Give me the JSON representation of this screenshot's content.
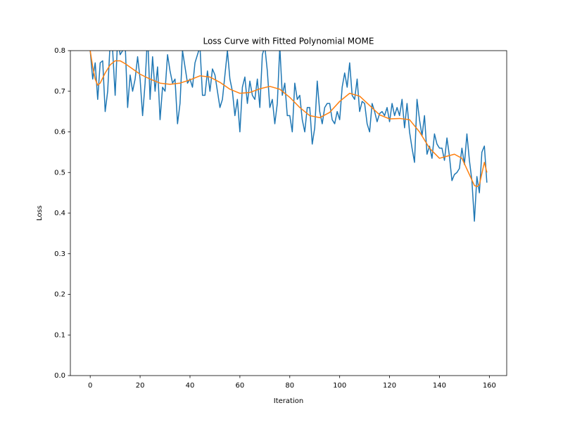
{
  "chart_data": {
    "type": "line",
    "title": "Loss Curve with Fitted Polynomial MOME",
    "xlabel": "Iteration",
    "ylabel": "Loss",
    "xlim": [
      -7.95,
      166.95
    ],
    "ylim": [
      0,
      0.8
    ],
    "xticks": [
      0,
      20,
      40,
      60,
      80,
      100,
      120,
      140,
      160
    ],
    "yticks": [
      {
        "value": 0,
        "label": "0.0"
      },
      0.1,
      0.2,
      0.3,
      0.4,
      0.5,
      0.6,
      0.7,
      0.8
    ],
    "series": [
      {
        "color": "#1f77b4",
        "x": [
          0,
          1,
          2,
          3,
          4,
          5,
          6,
          7,
          8,
          9,
          10,
          11,
          12,
          13,
          14,
          15,
          16,
          17,
          18,
          19,
          20,
          21,
          22,
          23,
          24,
          25,
          26,
          27,
          28,
          29,
          30,
          31,
          32,
          33,
          34,
          35,
          36,
          37,
          38,
          39,
          40,
          41,
          42,
          43,
          44,
          45,
          46,
          47,
          48,
          49,
          50,
          51,
          52,
          53,
          54,
          55,
          56,
          57,
          58,
          59,
          60,
          61,
          62,
          63,
          64,
          65,
          66,
          67,
          68,
          69,
          70,
          71,
          72,
          73,
          74,
          75,
          76,
          77,
          78,
          79,
          80,
          81,
          82,
          83,
          84,
          85,
          86,
          87,
          88,
          89,
          90,
          91,
          92,
          93,
          94,
          95,
          96,
          97,
          98,
          99,
          100,
          101,
          102,
          103,
          104,
          105,
          106,
          107,
          108,
          109,
          110,
          111,
          112,
          113,
          114,
          115,
          116,
          117,
          118,
          119,
          120,
          121,
          122,
          123,
          124,
          125,
          126,
          127,
          128,
          129,
          130,
          131,
          132,
          133,
          134,
          135,
          136,
          137,
          138,
          139,
          140,
          141,
          142,
          143,
          144,
          145,
          146,
          147,
          148,
          149,
          150,
          151,
          152,
          153,
          154,
          155,
          156,
          157,
          158,
          159
        ],
        "values": [
          0.8,
          0.73,
          0.77,
          0.68,
          0.77,
          0.775,
          0.65,
          0.7,
          0.82,
          0.8,
          0.69,
          0.83,
          0.79,
          0.8,
          0.82,
          0.66,
          0.74,
          0.7,
          0.73,
          0.785,
          0.73,
          0.64,
          0.72,
          0.84,
          0.68,
          0.785,
          0.7,
          0.76,
          0.63,
          0.71,
          0.7,
          0.79,
          0.75,
          0.72,
          0.73,
          0.62,
          0.67,
          0.8,
          0.76,
          0.72,
          0.73,
          0.71,
          0.77,
          0.79,
          0.81,
          0.69,
          0.69,
          0.75,
          0.7,
          0.755,
          0.74,
          0.7,
          0.66,
          0.68,
          0.74,
          0.8,
          0.73,
          0.7,
          0.64,
          0.68,
          0.6,
          0.71,
          0.735,
          0.67,
          0.725,
          0.69,
          0.68,
          0.73,
          0.66,
          0.79,
          0.81,
          0.75,
          0.66,
          0.68,
          0.62,
          0.67,
          0.81,
          0.69,
          0.72,
          0.64,
          0.64,
          0.6,
          0.72,
          0.68,
          0.69,
          0.63,
          0.6,
          0.66,
          0.66,
          0.57,
          0.61,
          0.725,
          0.65,
          0.62,
          0.66,
          0.67,
          0.67,
          0.63,
          0.62,
          0.65,
          0.63,
          0.71,
          0.745,
          0.71,
          0.77,
          0.69,
          0.68,
          0.73,
          0.65,
          0.675,
          0.67,
          0.62,
          0.6,
          0.67,
          0.65,
          0.625,
          0.645,
          0.65,
          0.64,
          0.66,
          0.625,
          0.67,
          0.64,
          0.66,
          0.64,
          0.68,
          0.61,
          0.67,
          0.6,
          0.56,
          0.525,
          0.68,
          0.63,
          0.59,
          0.64,
          0.545,
          0.565,
          0.535,
          0.595,
          0.57,
          0.56,
          0.56,
          0.53,
          0.585,
          0.54,
          0.48,
          0.495,
          0.5,
          0.51,
          0.56,
          0.52,
          0.595,
          0.53,
          0.48,
          0.38,
          0.49,
          0.45,
          0.55,
          0.565,
          0.475
        ]
      },
      {
        "color": "#ff7f0e",
        "x": [
          0,
          1,
          2,
          3,
          4,
          6,
          8,
          10,
          12,
          14,
          17,
          20,
          24,
          28,
          32,
          36,
          40,
          44,
          48,
          52,
          56,
          60,
          64,
          68,
          72,
          76,
          80,
          84,
          88,
          92,
          96,
          100,
          104,
          108,
          112,
          116,
          120,
          124,
          128,
          132,
          136,
          140,
          143,
          146,
          149,
          152,
          154,
          155,
          156,
          158,
          159
        ],
        "values": [
          0.8,
          0.76,
          0.73,
          0.715,
          0.72,
          0.745,
          0.765,
          0.775,
          0.775,
          0.768,
          0.755,
          0.742,
          0.73,
          0.72,
          0.717,
          0.72,
          0.728,
          0.738,
          0.735,
          0.722,
          0.705,
          0.695,
          0.697,
          0.706,
          0.712,
          0.705,
          0.685,
          0.66,
          0.64,
          0.635,
          0.648,
          0.675,
          0.695,
          0.688,
          0.665,
          0.642,
          0.632,
          0.633,
          0.63,
          0.6,
          0.56,
          0.535,
          0.54,
          0.545,
          0.535,
          0.495,
          0.468,
          0.465,
          0.47,
          0.525,
          0.5
        ]
      }
    ]
  }
}
